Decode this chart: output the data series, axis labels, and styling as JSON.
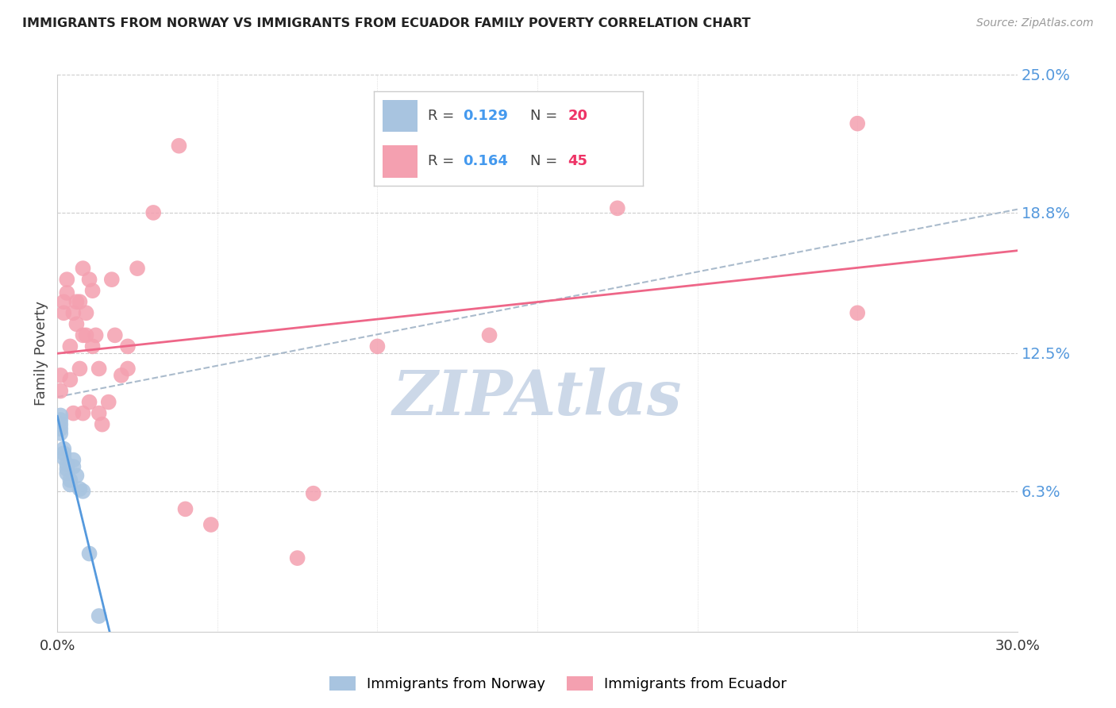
{
  "title": "IMMIGRANTS FROM NORWAY VS IMMIGRANTS FROM ECUADOR FAMILY POVERTY CORRELATION CHART",
  "source": "Source: ZipAtlas.com",
  "ylabel": "Family Poverty",
  "xlim": [
    0.0,
    0.3
  ],
  "ylim": [
    0.0,
    0.25
  ],
  "norway_R": 0.129,
  "norway_N": 20,
  "ecuador_R": 0.164,
  "ecuador_N": 45,
  "norway_color": "#a8c4e0",
  "ecuador_color": "#f4a0b0",
  "norway_line_color": "#5599dd",
  "ecuador_line_color": "#ee6688",
  "dashed_line_color": "#aabbcc",
  "background_color": "#ffffff",
  "grid_color": "#cccccc",
  "title_color": "#222222",
  "axis_label_color": "#444444",
  "legend_R_color": "#4499ee",
  "legend_N_color": "#ee3366",
  "right_axis_color": "#5599dd",
  "watermark": "ZIPAtlas",
  "watermark_color": "#ccd8e8",
  "norway_x": [
    0.001,
    0.001,
    0.001,
    0.001,
    0.001,
    0.002,
    0.002,
    0.002,
    0.003,
    0.003,
    0.003,
    0.004,
    0.004,
    0.005,
    0.005,
    0.006,
    0.007,
    0.008,
    0.01,
    0.013
  ],
  "norway_y": [
    0.097,
    0.095,
    0.093,
    0.091,
    0.089,
    0.082,
    0.08,
    0.078,
    0.075,
    0.073,
    0.071,
    0.068,
    0.066,
    0.077,
    0.074,
    0.07,
    0.064,
    0.063,
    0.035,
    0.007
  ],
  "ecuador_x": [
    0.001,
    0.001,
    0.002,
    0.002,
    0.003,
    0.003,
    0.004,
    0.004,
    0.005,
    0.005,
    0.006,
    0.006,
    0.007,
    0.007,
    0.008,
    0.008,
    0.008,
    0.009,
    0.009,
    0.01,
    0.01,
    0.011,
    0.011,
    0.012,
    0.013,
    0.013,
    0.014,
    0.016,
    0.017,
    0.018,
    0.02,
    0.022,
    0.022,
    0.025,
    0.03,
    0.038,
    0.04,
    0.048,
    0.075,
    0.08,
    0.1,
    0.135,
    0.175,
    0.25,
    0.25
  ],
  "ecuador_y": [
    0.115,
    0.108,
    0.148,
    0.143,
    0.158,
    0.152,
    0.128,
    0.113,
    0.143,
    0.098,
    0.148,
    0.138,
    0.148,
    0.118,
    0.133,
    0.163,
    0.098,
    0.143,
    0.133,
    0.158,
    0.103,
    0.153,
    0.128,
    0.133,
    0.118,
    0.098,
    0.093,
    0.103,
    0.158,
    0.133,
    0.115,
    0.128,
    0.118,
    0.163,
    0.188,
    0.218,
    0.055,
    0.048,
    0.033,
    0.062,
    0.128,
    0.133,
    0.19,
    0.228,
    0.143
  ],
  "norway_trend_x": [
    0.0,
    0.3
  ],
  "norway_trend_y": [
    0.07,
    0.082
  ],
  "ecuador_trend_x": [
    0.0,
    0.3
  ],
  "ecuador_trend_y": [
    0.118,
    0.142
  ],
  "dashed_trend_x": [
    0.0,
    0.3
  ],
  "dashed_trend_y": [
    0.095,
    0.178
  ]
}
